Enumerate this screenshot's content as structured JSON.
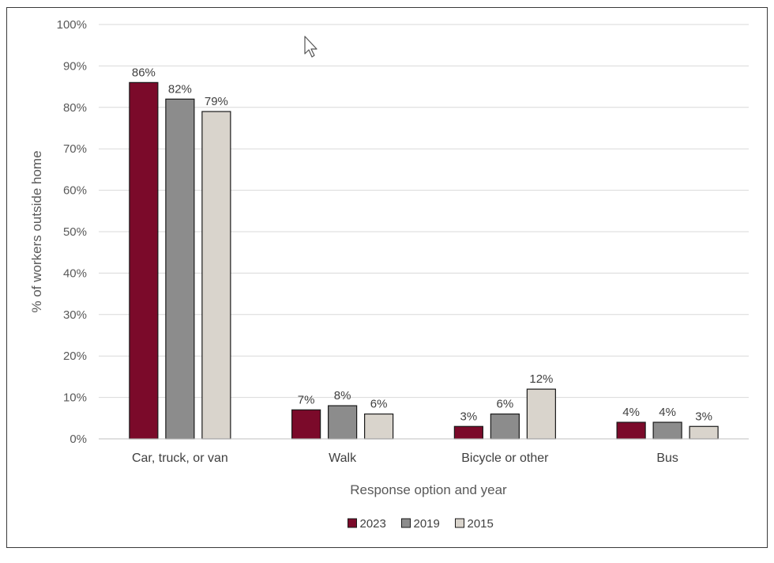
{
  "chart_data": {
    "type": "bar",
    "categories": [
      "Car, truck, or van",
      "Walk",
      "Bicycle or other",
      "Bus"
    ],
    "series": [
      {
        "name": "2023",
        "values": [
          86,
          7,
          3,
          4
        ],
        "color": "#7b0a2a"
      },
      {
        "name": "2019",
        "values": [
          82,
          8,
          6,
          4
        ],
        "color": "#8c8c8c"
      },
      {
        "name": "2015",
        "values": [
          79,
          6,
          12,
          3
        ],
        "color": "#d9d4cc"
      }
    ],
    "data_labels": [
      [
        "86%",
        "7%",
        "3%",
        "4%"
      ],
      [
        "82%",
        "8%",
        "6%",
        "4%"
      ],
      [
        "79%",
        "6%",
        "12%",
        "3%"
      ]
    ],
    "xlabel": "Response option and year",
    "ylabel": "% of workers outside home",
    "ylim": [
      0,
      100
    ],
    "yticks": [
      "0%",
      "10%",
      "20%",
      "30%",
      "40%",
      "50%",
      "60%",
      "70%",
      "80%",
      "90%",
      "100%"
    ],
    "grid": true,
    "legend": "bottom-center"
  }
}
